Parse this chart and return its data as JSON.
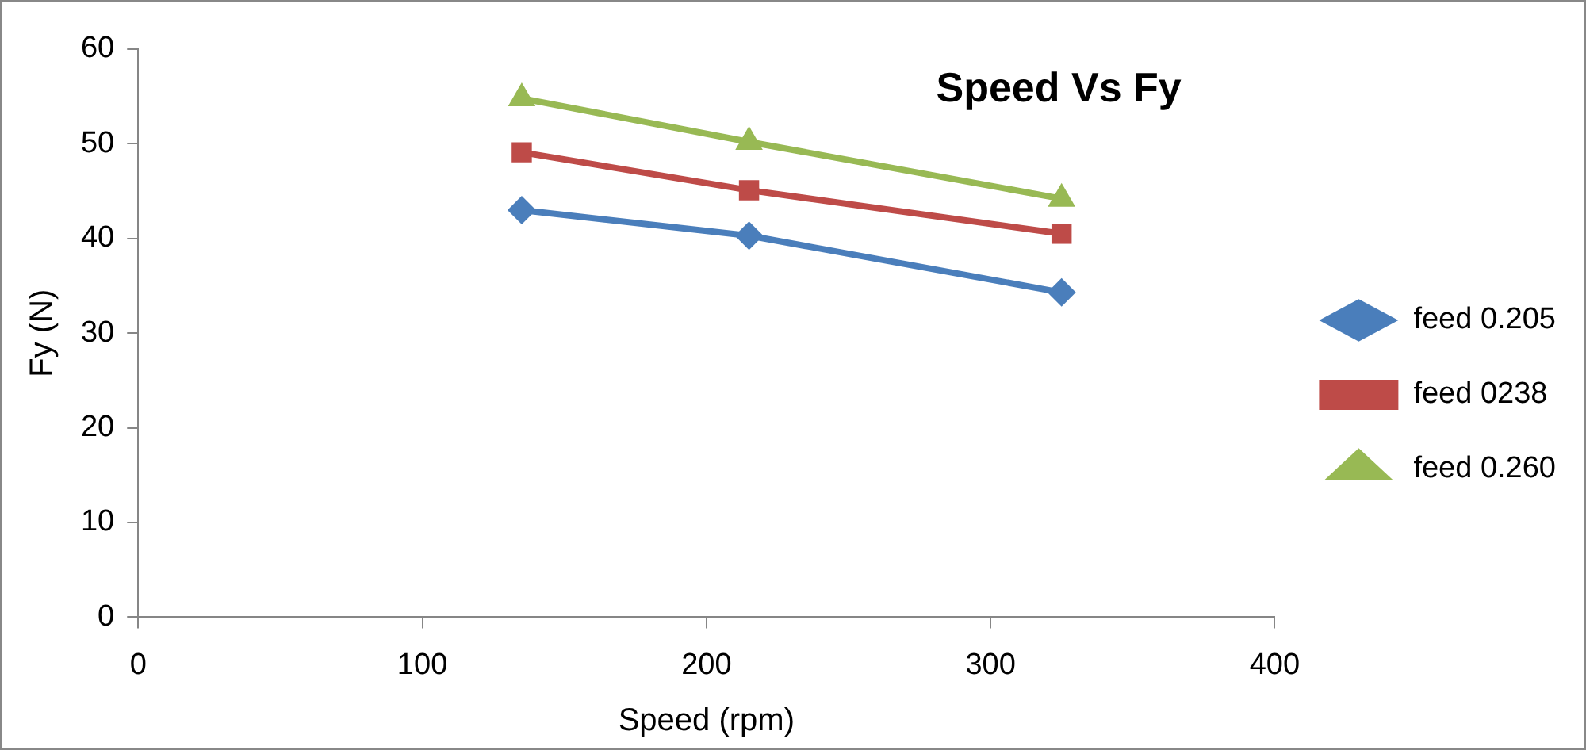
{
  "chart_data": {
    "type": "line",
    "title": "Speed Vs Fy",
    "xlabel": "Speed (rpm)",
    "ylabel": "Fy (N)",
    "xlim": [
      0,
      400
    ],
    "xticks": [
      0,
      100,
      200,
      300,
      400
    ],
    "ylim": [
      0,
      60
    ],
    "yticks": [
      0,
      10,
      20,
      30,
      40,
      50,
      60
    ],
    "grid": false,
    "legend": "right",
    "line_style": "solid",
    "series": [
      {
        "name": "feed 0.205",
        "color": "#4a7ebb",
        "marker": "diamond",
        "x": [
          135,
          215,
          325
        ],
        "values": [
          43,
          40.3,
          34.3
        ]
      },
      {
        "name": "feed 0238",
        "color": "#be4b48",
        "marker": "square",
        "x": [
          135,
          215,
          325
        ],
        "values": [
          49.1,
          45.1,
          40.5
        ]
      },
      {
        "name": "feed 0.260",
        "color": "#98b954",
        "marker": "triangle",
        "x": [
          135,
          215,
          325
        ],
        "values": [
          54.8,
          50.2,
          44.2
        ]
      }
    ]
  }
}
